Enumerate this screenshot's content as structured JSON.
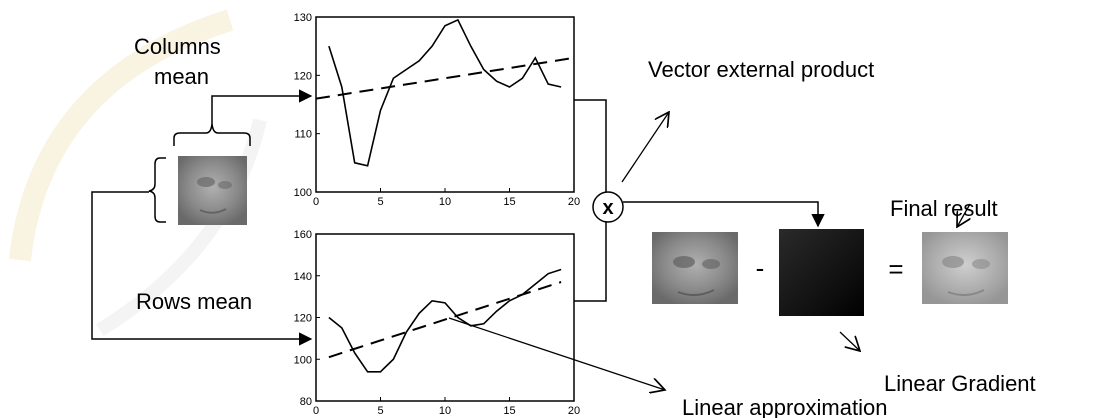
{
  "labels": {
    "columns_mean_line1": "Columns",
    "columns_mean_line2": "mean",
    "rows_mean": "Rows mean",
    "vector_external_product": "Vector external product",
    "final_result": "Final result",
    "linear_gradient": "Linear Gradient",
    "linear_approximation": "Linear approximation"
  },
  "operators": {
    "times": "x",
    "minus": "-",
    "equals": "="
  },
  "colors": {
    "watermark": "#f6ecd0",
    "line": "#000000",
    "face_gray": "#8c8c8c"
  },
  "chart_data": [
    {
      "type": "line",
      "title": "",
      "xlabel": "",
      "ylabel": "",
      "xlim": [
        0,
        20
      ],
      "ylim": [
        100,
        130
      ],
      "xticks": [
        0,
        5,
        10,
        15,
        20
      ],
      "yticks": [
        100,
        110,
        120,
        130
      ],
      "series": [
        {
          "style": "solid",
          "x": [
            1,
            2,
            3,
            4,
            5,
            6,
            7,
            8,
            9,
            10,
            11,
            12,
            13,
            14,
            15,
            16,
            17,
            18,
            19
          ],
          "y": [
            125,
            118,
            105,
            104.5,
            114,
            119.5,
            121,
            122.5,
            125,
            128.5,
            129.5,
            125,
            121,
            119,
            118,
            119.5,
            123,
            118.5,
            118
          ]
        },
        {
          "style": "dashed",
          "x": [
            0,
            20
          ],
          "y": [
            116,
            123
          ]
        }
      ]
    },
    {
      "type": "line",
      "title": "",
      "xlabel": "",
      "ylabel": "",
      "xlim": [
        0,
        20
      ],
      "ylim": [
        80,
        160
      ],
      "xticks": [
        0,
        5,
        10,
        15,
        20
      ],
      "yticks": [
        80,
        100,
        120,
        140,
        160
      ],
      "series": [
        {
          "style": "solid",
          "x": [
            1,
            2,
            3,
            4,
            5,
            6,
            7,
            8,
            9,
            10,
            11,
            12,
            13,
            14,
            15,
            16,
            17,
            18,
            19
          ],
          "y": [
            120,
            115,
            103,
            94,
            94,
            100,
            113,
            122,
            128,
            127,
            120,
            116,
            117,
            123,
            128,
            131,
            136,
            141,
            143
          ]
        },
        {
          "style": "dashed",
          "x": [
            1,
            19
          ],
          "y": [
            101,
            137
          ]
        }
      ]
    }
  ]
}
